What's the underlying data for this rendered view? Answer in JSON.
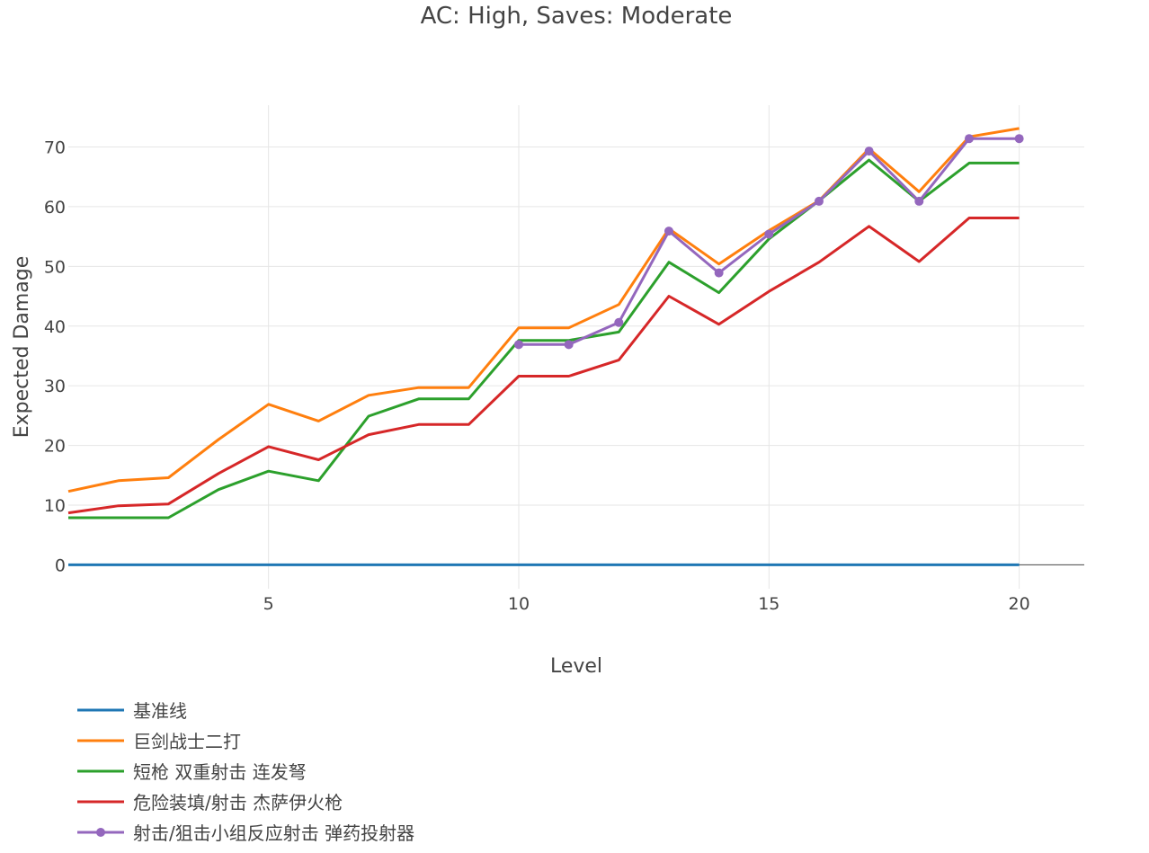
{
  "chart_data": {
    "type": "line",
    "title": "AC: High, Saves: Moderate",
    "xlabel": "Level",
    "ylabel": "Expected Damage",
    "xlim": [
      1,
      21.3
    ],
    "ylim": [
      -4,
      77
    ],
    "x_ticks": [
      5,
      10,
      15,
      20
    ],
    "y_ticks": [
      0,
      10,
      20,
      30,
      40,
      50,
      60,
      70
    ],
    "grid": true,
    "legend_position": "bottom-left",
    "x": [
      1,
      2,
      3,
      4,
      5,
      6,
      7,
      8,
      9,
      10,
      11,
      12,
      13,
      14,
      15,
      16,
      17,
      18,
      19,
      20
    ],
    "series": [
      {
        "name": "基准线",
        "color": "#1f77b4",
        "markers": false,
        "values": [
          0,
          0,
          0,
          0,
          0,
          0,
          0,
          0,
          0,
          0,
          0,
          0,
          0,
          0,
          0,
          0,
          0,
          0,
          0,
          0
        ]
      },
      {
        "name": "巨剑战士二打",
        "color": "#ff7f0e",
        "markers": false,
        "values": [
          12.3,
          14.1,
          14.6,
          21.0,
          26.9,
          24.1,
          28.4,
          29.7,
          29.7,
          39.7,
          39.7,
          43.6,
          56.3,
          50.4,
          56.0,
          61.0,
          69.7,
          62.5,
          71.7,
          73.1
        ]
      },
      {
        "name": "短枪 双重射击 连发弩",
        "color": "#2ca02c",
        "markers": false,
        "values": [
          7.9,
          7.9,
          7.9,
          12.6,
          15.7,
          14.1,
          24.9,
          27.8,
          27.8,
          37.6,
          37.6,
          39.0,
          50.7,
          45.6,
          54.6,
          61.0,
          67.8,
          60.9,
          67.3,
          67.3
        ]
      },
      {
        "name": "危险装填/射击 杰萨伊火枪",
        "color": "#d62728",
        "markers": false,
        "values": [
          8.7,
          9.9,
          10.2,
          15.3,
          19.8,
          17.6,
          21.8,
          23.5,
          23.5,
          31.6,
          31.6,
          34.3,
          45.0,
          40.3,
          45.8,
          50.7,
          56.7,
          50.8,
          58.1,
          58.1
        ]
      },
      {
        "name": "射击/狙击小组反应射击 弹药投射器",
        "color": "#9467bd",
        "markers": true,
        "x": [
          10,
          11,
          12,
          13,
          14,
          15,
          16,
          17,
          18,
          19,
          20
        ],
        "values": [
          36.9,
          36.9,
          40.6,
          55.9,
          48.9,
          55.4,
          60.9,
          69.3,
          60.9,
          71.4,
          71.4
        ]
      }
    ]
  }
}
